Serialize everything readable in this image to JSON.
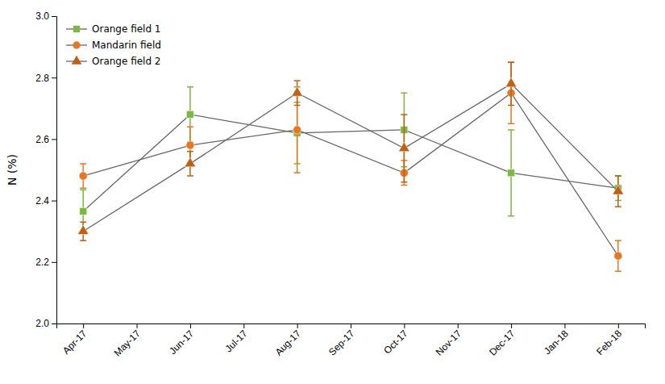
{
  "chart_data": {
    "type": "line",
    "categories": [
      "Apr-17",
      "May-17",
      "Jun-17",
      "Jul-17",
      "Aug-17",
      "Sep-17",
      "Oct-17",
      "Nov-17",
      "Dec-17",
      "Jan-18",
      "Feb-18"
    ],
    "series": [
      {
        "name": "Orange field 1",
        "color": "#7ab840",
        "marker": "square",
        "x": [
          "Apr-17",
          "Jun-17",
          "Aug-17",
          "Oct-17",
          "Dec-17",
          "Feb-18"
        ],
        "values": [
          2.365,
          2.68,
          2.62,
          2.63,
          2.49,
          2.44
        ],
        "errors": [
          0.07,
          0.09,
          0.1,
          0.12,
          0.14,
          0.04
        ]
      },
      {
        "name": "Mandarin field",
        "color": "#e87722",
        "marker": "circle",
        "x": [
          "Apr-17",
          "Jun-17",
          "Aug-17",
          "Oct-17",
          "Dec-17",
          "Feb-18"
        ],
        "values": [
          2.48,
          2.58,
          2.63,
          2.49,
          2.75,
          2.22
        ],
        "errors": [
          0.04,
          0.06,
          0.14,
          0.04,
          0.1,
          0.05
        ]
      },
      {
        "name": "Orange field 2",
        "color": "#c06010",
        "marker": "triangle",
        "x": [
          "Apr-17",
          "Jun-17",
          "Aug-17",
          "Oct-17",
          "Dec-17",
          "Feb-18"
        ],
        "values": [
          2.3,
          2.52,
          2.75,
          2.57,
          2.78,
          2.43
        ],
        "errors": [
          0.03,
          0.04,
          0.04,
          0.11,
          0.07,
          0.05
        ]
      }
    ],
    "ylabel": "N (%)",
    "ylim": [
      2.0,
      3.0
    ],
    "yticks": [
      {
        "value": 2.0,
        "label": "2.0"
      },
      2.2,
      2.4,
      2.6,
      2.8,
      {
        "value": 3.0,
        "label": "3.0"
      }
    ],
    "grid": false,
    "legend": "upper-left"
  }
}
